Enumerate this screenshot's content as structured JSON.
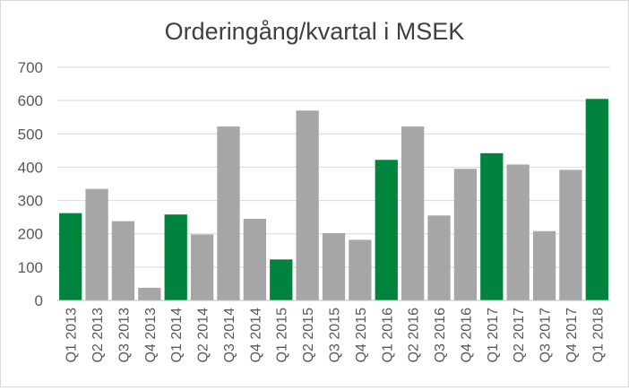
{
  "chart_data": {
    "type": "bar",
    "title": "Orderingång/kvartal i MSEK",
    "xlabel": "",
    "ylabel": "",
    "ylim": [
      0,
      700
    ],
    "yticks": [
      0,
      100,
      200,
      300,
      400,
      500,
      600,
      700
    ],
    "grid": true,
    "legend": "none",
    "categories": [
      "Q1 2013",
      "Q2 2013",
      "Q3 2013",
      "Q4 2013",
      "Q1 2014",
      "Q2 2014",
      "Q3 2014",
      "Q4 2014",
      "Q1 2015",
      "Q2 2015",
      "Q3 2015",
      "Q4 2015",
      "Q1 2016",
      "Q2 2016",
      "Q3 2016",
      "Q4 2016",
      "Q1 2017",
      "Q2 2017",
      "Q3 2017",
      "Q4 2017",
      "Q1 2018"
    ],
    "values": [
      262,
      335,
      238,
      38,
      258,
      198,
      522,
      245,
      123,
      570,
      202,
      182,
      422,
      522,
      255,
      395,
      442,
      408,
      208,
      392,
      605
    ],
    "highlight_color": "#00843d",
    "default_color": "#a6a6a6",
    "highlight_categories": [
      "Q1 2013",
      "Q1 2014",
      "Q1 2015",
      "Q1 2016",
      "Q1 2017",
      "Q1 2018"
    ]
  }
}
